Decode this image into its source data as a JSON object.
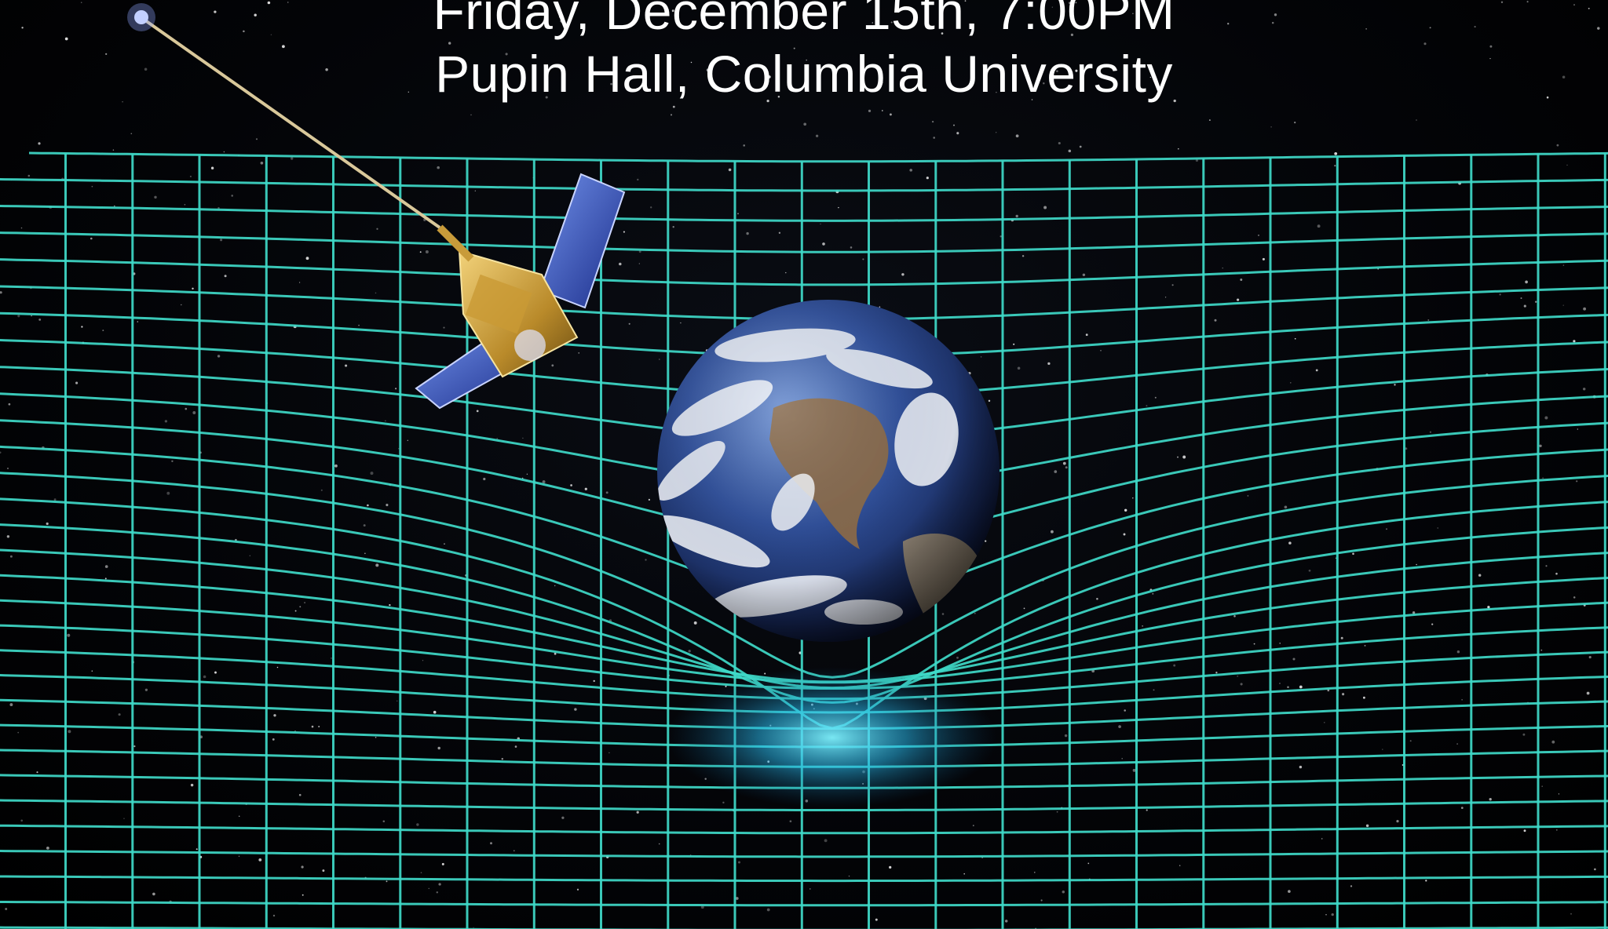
{
  "event": {
    "date_line": "Friday,  December 15th, 7:00PM",
    "venue_line": "Pupin Hall, Columbia University"
  },
  "colors": {
    "background": "#000000",
    "grid": "#3fd9c8",
    "grid_glow": "#29b6e8",
    "text": "#ffffff"
  },
  "illustration": {
    "subjects": [
      "spacetime-grid",
      "earth-globe",
      "satellite"
    ],
    "icon_names": [
      "satellite-icon",
      "earth-icon",
      "star-icon"
    ]
  }
}
